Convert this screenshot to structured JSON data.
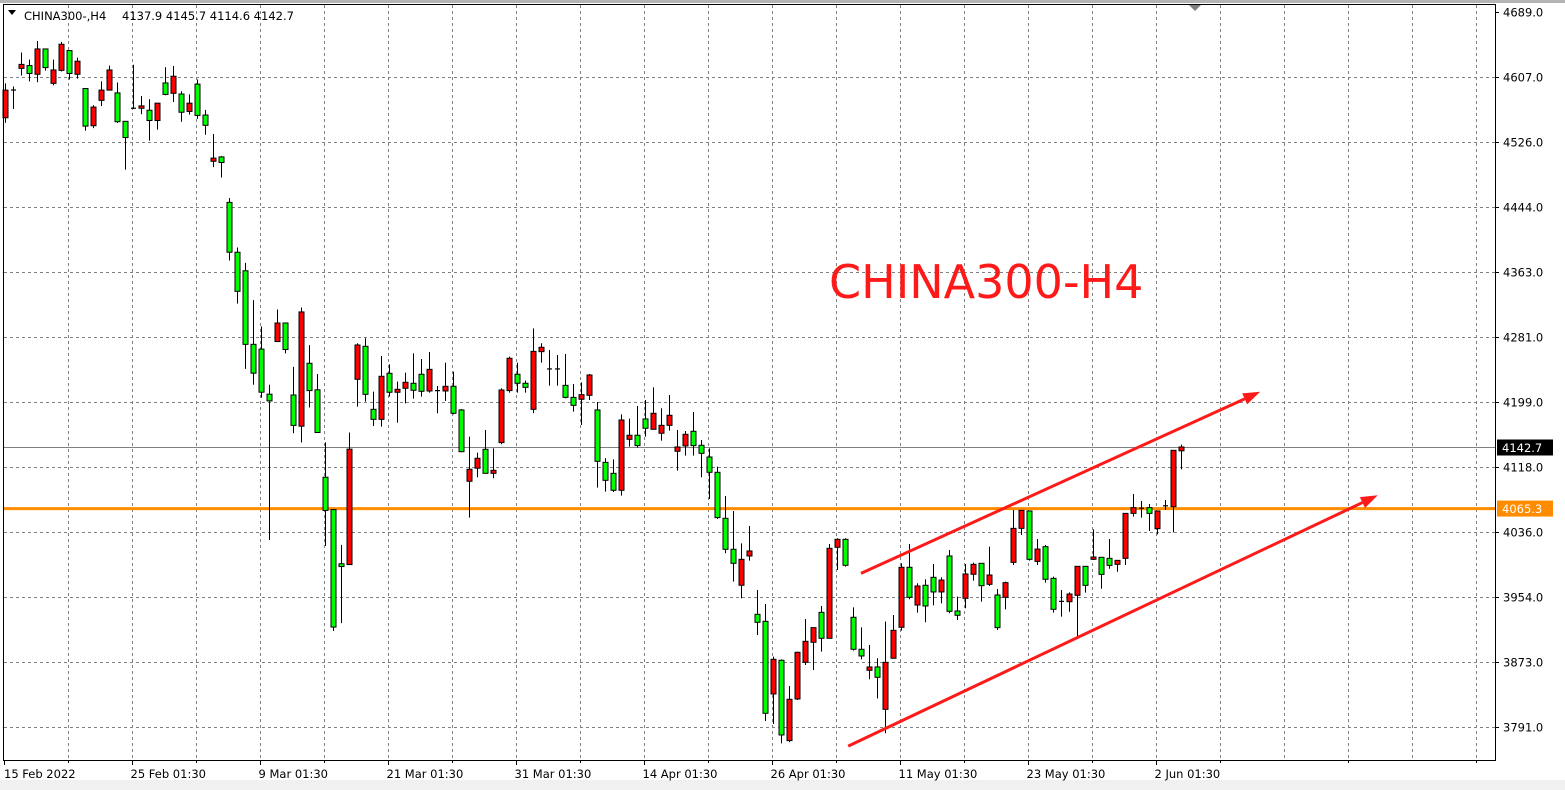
{
  "header": {
    "symbol_label": "CHINA300-,H4",
    "ohlc_label": "4137.9 4145.7 4114.6 4142.7",
    "menu_icon": "triangle-down-icon"
  },
  "chart_data": {
    "type": "candlestick",
    "symbol": "CHINA300-",
    "timeframe": "H4",
    "ohlc_order": [
      "open",
      "high",
      "low",
      "close"
    ],
    "up_color": "#ff0000",
    "down_color": "#00ff00",
    "wick_color": "#000000",
    "grid": true,
    "grid_style": "dashed",
    "ylim": [
      3750,
      4700
    ],
    "y_ticks": [
      4689.0,
      4607.0,
      4526.0,
      4444.0,
      4363.0,
      4281.0,
      4199.0,
      4118.0,
      4036.0,
      3954.0,
      3873.0,
      3791.0
    ],
    "y_tick_labels": [
      "4689.0",
      "4607.0",
      "4526.0",
      "4444.0",
      "4363.0",
      "4281.0",
      "4199.0",
      "4118.0",
      "4036.0",
      "3954.0",
      "3873.0",
      "3791.0"
    ],
    "x_ticks": [
      {
        "bar": 0,
        "label": "15 Feb 2022"
      },
      {
        "bar": 16,
        "label": "25 Feb 01:30"
      },
      {
        "bar": 32,
        "label": "9 Mar 01:30"
      },
      {
        "bar": 48,
        "label": "21 Mar 01:30"
      },
      {
        "bar": 64,
        "label": "31 Mar 01:30"
      },
      {
        "bar": 80,
        "label": "14 Apr 01:30"
      },
      {
        "bar": 96,
        "label": "26 Apr 01:30"
      },
      {
        "bar": 112,
        "label": "11 May 01:30"
      },
      {
        "bar": 128,
        "label": "23 May 01:30"
      },
      {
        "bar": 144,
        "label": "2 Jun 01:30"
      }
    ],
    "current_price": {
      "value": 4142.7,
      "label": "4142.7",
      "line_color": "#808080",
      "label_bg": "#000000"
    },
    "horizontal_level": {
      "value": 4065.3,
      "label": "4065.3",
      "color": "#ff8c00"
    },
    "annotation_text": {
      "text": "CHINA300-H4",
      "color": "#ff1a1a",
      "bar": 103,
      "price": 4330
    },
    "trend_arrows": [
      {
        "color": "#ff1a1a",
        "start": {
          "bar": 107,
          "price": 3984
        },
        "end": {
          "bar": 156.9,
          "price": 4212
        }
      },
      {
        "color": "#ff1a1a",
        "start": {
          "bar": 105.4,
          "price": 3767
        },
        "end": {
          "bar": 171.6,
          "price": 4082
        }
      }
    ],
    "candles": [
      [
        4556.2,
        4599.4,
        4549.7,
        4590.9
      ],
      [
        4591,
        4595.4,
        4567.1,
        4591
      ],
      [
        4618.2,
        4638.1,
        4609.3,
        4623.2
      ],
      [
        4621.7,
        4629.2,
        4601.8,
        4611.8
      ],
      [
        4610.8,
        4652.5,
        4600.8,
        4642.6
      ],
      [
        4642.6,
        4642.6,
        4615.3,
        4619.2
      ],
      [
        4599.4,
        4629.2,
        4596.9,
        4616.2
      ],
      [
        4615.7,
        4651.5,
        4614.3,
        4648.5
      ],
      [
        4640.6,
        4640.6,
        4604.3,
        4611.8
      ],
      [
        4610.8,
        4631.6,
        4605.3,
        4627.2
      ],
      [
        4592.9,
        4592.9,
        4539.8,
        4545.7
      ],
      [
        4546.2,
        4572,
        4543.2,
        4569.6
      ],
      [
        4578,
        4601.8,
        4571,
        4590.9
      ],
      [
        4590.9,
        4621.7,
        4590.9,
        4616.2
      ],
      [
        4587.4,
        4600.4,
        4549.7,
        4551.2
      ],
      [
        4551.7,
        4551.7,
        4491.1,
        4531.3
      ],
      [
        4568.1,
        4622.7,
        4567.1,
        4568.1
      ],
      [
        4568.1,
        4583.5,
        4560.6,
        4571.1
      ],
      [
        4565.6,
        4579.5,
        4527.4,
        4552.7
      ],
      [
        4552.7,
        4574.5,
        4541.2,
        4574.5
      ],
      [
        4599.9,
        4619.7,
        4584.5,
        4585.5
      ],
      [
        4586.9,
        4621.2,
        4576,
        4608.3
      ],
      [
        4586,
        4589.4,
        4551.2,
        4563.1
      ],
      [
        4564.1,
        4585.5,
        4560.1,
        4574.5
      ],
      [
        4598.4,
        4604.3,
        4554.7,
        4559.1
      ],
      [
        4559.6,
        4566.1,
        4534.8,
        4546.7
      ],
      [
        4501.5,
        4535.8,
        4494.1,
        4505.5
      ],
      [
        4507,
        4508,
        4481.2,
        4500
      ],
      [
        4449.9,
        4455.3,
        4376.9,
        4387.3
      ],
      [
        4387.3,
        4393.3,
        4322.8,
        4338.2
      ],
      [
        4364,
        4373.9,
        4240.8,
        4271.6
      ],
      [
        4271.6,
        4327.2,
        4220.9,
        4235.4
      ],
      [
        4265.6,
        4294,
        4204.6,
        4211.5
      ],
      [
        4209,
        4220.9,
        4025.8,
        4200.6
      ],
      [
        4275.1,
        4315.3,
        4275.1,
        4298.4
      ],
      [
        4298.4,
        4298.4,
        4260.2,
        4265.1
      ],
      [
        4208,
        4243.3,
        4159.9,
        4169.8
      ],
      [
        4168.8,
        4317.8,
        4148.4,
        4312.3
      ],
      [
        4247.8,
        4270.6,
        4192.2,
        4213.5
      ],
      [
        4214.5,
        4234.4,
        4160.9,
        4160.9
      ],
      [
        4104.7,
        4148.4,
        4018.3,
        4063
      ],
      [
        4064,
        4064,
        3911.5,
        3916.5
      ],
      [
        3996,
        4019.8,
        3921.5,
        3992.5
      ],
      [
        3995,
        4160.9,
        3995,
        4140
      ],
      [
        4227.7,
        4272.9,
        4193.4,
        4270.8
      ],
      [
        4269.1,
        4279.2,
        4199.6,
        4208.8
      ],
      [
        4190,
        4212.2,
        4169.1,
        4177.4
      ],
      [
        4177.4,
        4257,
        4168.2,
        4231.5
      ],
      [
        4235.2,
        4246.5,
        4205.9,
        4211.4
      ],
      [
        4211.4,
        4224.8,
        4173.3,
        4215.1
      ],
      [
        4216.4,
        4236,
        4197.5,
        4223.9
      ],
      [
        4222.7,
        4260.3,
        4203.4,
        4213.9
      ],
      [
        4234,
        4253.2,
        4205.9,
        4212.6
      ],
      [
        4213,
        4262,
        4211,
        4240.2
      ],
      [
        4213.5,
        4219.3,
        4185,
        4213.5
      ],
      [
        4213,
        4248.6,
        4200.5,
        4218.9
      ],
      [
        4218.9,
        4237.3,
        4183.7,
        4185
      ],
      [
        4189.2,
        4190.4,
        4136,
        4136.8
      ],
      [
        4099.6,
        4155.7,
        4054,
        4114.7
      ],
      [
        4116,
        4135.6,
        4104.6,
        4128.5
      ],
      [
        4139.8,
        4164,
        4109.6,
        4109.6
      ],
      [
        4109.6,
        4141,
        4103.4,
        4113.4
      ],
      [
        4148.2,
        4216.4,
        4146.1,
        4214.3
      ],
      [
        4213.5,
        4256.2,
        4211,
        4254.1
      ],
      [
        4234,
        4248.6,
        4211,
        4222.7
      ],
      [
        4222.7,
        4226,
        4211,
        4217.6
      ],
      [
        4190,
        4291.7,
        4185,
        4262.8
      ],
      [
        4262.4,
        4272.9,
        4248.6,
        4267.9
      ],
      [
        4240.7,
        4264.5,
        4219.7,
        4240.7
      ],
      [
        4240.7,
        4258.2,
        4219.7,
        4240.7
      ],
      [
        4220.1,
        4259.5,
        4203.8,
        4205
      ],
      [
        4205,
        4221.8,
        4187.1,
        4195
      ],
      [
        4202.6,
        4223.9,
        4170.3,
        4208.4
      ],
      [
        4207.6,
        4234.4,
        4201.7,
        4233.1
      ],
      [
        4189.2,
        4199.2,
        4091.6,
        4124.7
      ],
      [
        4123.4,
        4128.5,
        4086.6,
        4100.8
      ],
      [
        4109.6,
        4127.2,
        4086.2,
        4088.3
      ],
      [
        4088.3,
        4183.7,
        4081.6,
        4176.6
      ],
      [
        4152.3,
        4178.3,
        4143.1,
        4157.4
      ],
      [
        4157.4,
        4194.2,
        4141.9,
        4144.4
      ],
      [
        4177.9,
        4201.7,
        4155.7,
        4166.2
      ],
      [
        4164.9,
        4217.6,
        4164.9,
        4185
      ],
      [
        4159.9,
        4191.3,
        4150.7,
        4169.9
      ],
      [
        4169.9,
        4208,
        4163.2,
        4182.5
      ],
      [
        4137.3,
        4164,
        4113,
        4142.7
      ],
      [
        4144,
        4162.8,
        4131.8,
        4158.6
      ],
      [
        4162.4,
        4186.7,
        4131.8,
        4144.4
      ],
      [
        4144.8,
        4151.5,
        4104.6,
        4134.7
      ],
      [
        4130.1,
        4141,
        4077.4,
        4110.9
      ],
      [
        4110.9,
        4118,
        4052.3,
        4054
      ],
      [
        4053.1,
        4081.2,
        4009.2,
        4014.2
      ],
      [
        4014.2,
        4062.3,
        3973.6,
        3996.6
      ],
      [
        3969,
        4021.7,
        3952.6,
        4001.6
      ],
      [
        4005.8,
        4043.5,
        4000,
        4012.1
      ],
      [
        3932.5,
        3963,
        3906.6,
        3922.5
      ],
      [
        3923.7,
        3945.5,
        3798.6,
        3808.2
      ],
      [
        3832.5,
        3879.4,
        3794.8,
        3876
      ],
      [
        3874.8,
        3876,
        3770.5,
        3781
      ],
      [
        3773.9,
        3842.5,
        3771.8,
        3825.8
      ],
      [
        3826.2,
        3885.6,
        3824.9,
        3884.8
      ],
      [
        3872.2,
        3926.7,
        3868.9,
        3898.6
      ],
      [
        3897.4,
        3915.8,
        3862.6,
        3915.8
      ],
      [
        3935,
        3943,
        3885.6,
        3902.4
      ],
      [
        3902.4,
        4020.9,
        3902.4,
        4015.4
      ],
      [
        4016.7,
        4028,
        3988.2,
        4026.7
      ],
      [
        4026.7,
        4028,
        3992.4,
        3994.1
      ],
      [
        3928.8,
        3941.3,
        3886.9,
        3888.6
      ],
      [
        3888.6,
        3916.2,
        3876,
        3880.2
      ],
      [
        3862.2,
        3894,
        3850.9,
        3866.4
      ],
      [
        3866.4,
        3877.3,
        3827,
        3853.4
      ],
      [
        3813.2,
        3923.3,
        3783.1,
        3872.2
      ],
      [
        3877.3,
        3931.7,
        3877.3,
        3912.4
      ],
      [
        3916.2,
        3996.6,
        3912,
        3991.6
      ],
      [
        3991.6,
        4020.9,
        3951.4,
        3953.9
      ],
      [
        3944.2,
        3971.5,
        3934.6,
        3968.1
      ],
      [
        3969,
        3976.5,
        3922.5,
        3943
      ],
      [
        3979,
        3995.7,
        3943.8,
        3960.6
      ],
      [
        3960.6,
        3979,
        3946.3,
        3975.6
      ],
      [
        4005.8,
        4013.3,
        3933.8,
        3936.3
      ],
      [
        3936.7,
        3954.7,
        3925.4,
        3931.3
      ],
      [
        3952.6,
        3995.7,
        3940.1,
        3983.2
      ],
      [
        3982.8,
        3997.4,
        3974.8,
        3995.3
      ],
      [
        3996.6,
        3996.6,
        3948.4,
        3968.5
      ],
      [
        3970.2,
        4017.5,
        3968.1,
        3981.9
      ],
      [
        3956.8,
        3964.3,
        3912.9,
        3915.8
      ],
      [
        3953.9,
        3973.6,
        3938.8,
        3972.3
      ],
      [
        3997.8,
        4063.5,
        3994.5,
        4040.5
      ],
      [
        4040.5,
        4063.1,
        4032.1,
        4063.1
      ],
      [
        4062.3,
        4062.3,
        3999.9,
        4001.6
      ],
      [
        3999,
        4027.1,
        3994.5,
        4014.5
      ],
      [
        4017.5,
        4019.6,
        3972.3,
        3976.5
      ],
      [
        3977.7,
        3979.8,
        3934.6,
        3938.8
      ],
      [
        3948.8,
        3963,
        3929.6,
        3948.8
      ],
      [
        3948.4,
        3960.1,
        3935.8,
        3958
      ],
      [
        3956.4,
        3992.8,
        3903.6,
        3992.8
      ],
      [
        3992.8,
        3992.8,
        3959.7,
        3968.9
      ],
      [
        4001.6,
        4039.2,
        4000.7,
        4004.5
      ],
      [
        4004.1,
        4004.1,
        3964.7,
        3982.7
      ],
      [
        4002.8,
        4027.1,
        3989.8,
        3994
      ],
      [
        3995.3,
        4000.3,
        3986,
        4000.3
      ],
      [
        4002.8,
        4059.3,
        3994.5,
        4059.3
      ],
      [
        4059.3,
        4083.6,
        4055.2,
        4066.5
      ],
      [
        4066,
        4074.8,
        4053.9,
        4065.6
      ],
      [
        4066.5,
        4071.1,
        4037.2,
        4059.3
      ],
      [
        4040.1,
        4062.3,
        4033,
        4062.3
      ],
      [
        4068.6,
        4076.1,
        4063.5,
        4069
      ],
      [
        4067.7,
        4138.5,
        4035.5,
        4138.5
      ],
      [
        4137.9,
        4145.7,
        4114.6,
        4142.7
      ]
    ]
  }
}
